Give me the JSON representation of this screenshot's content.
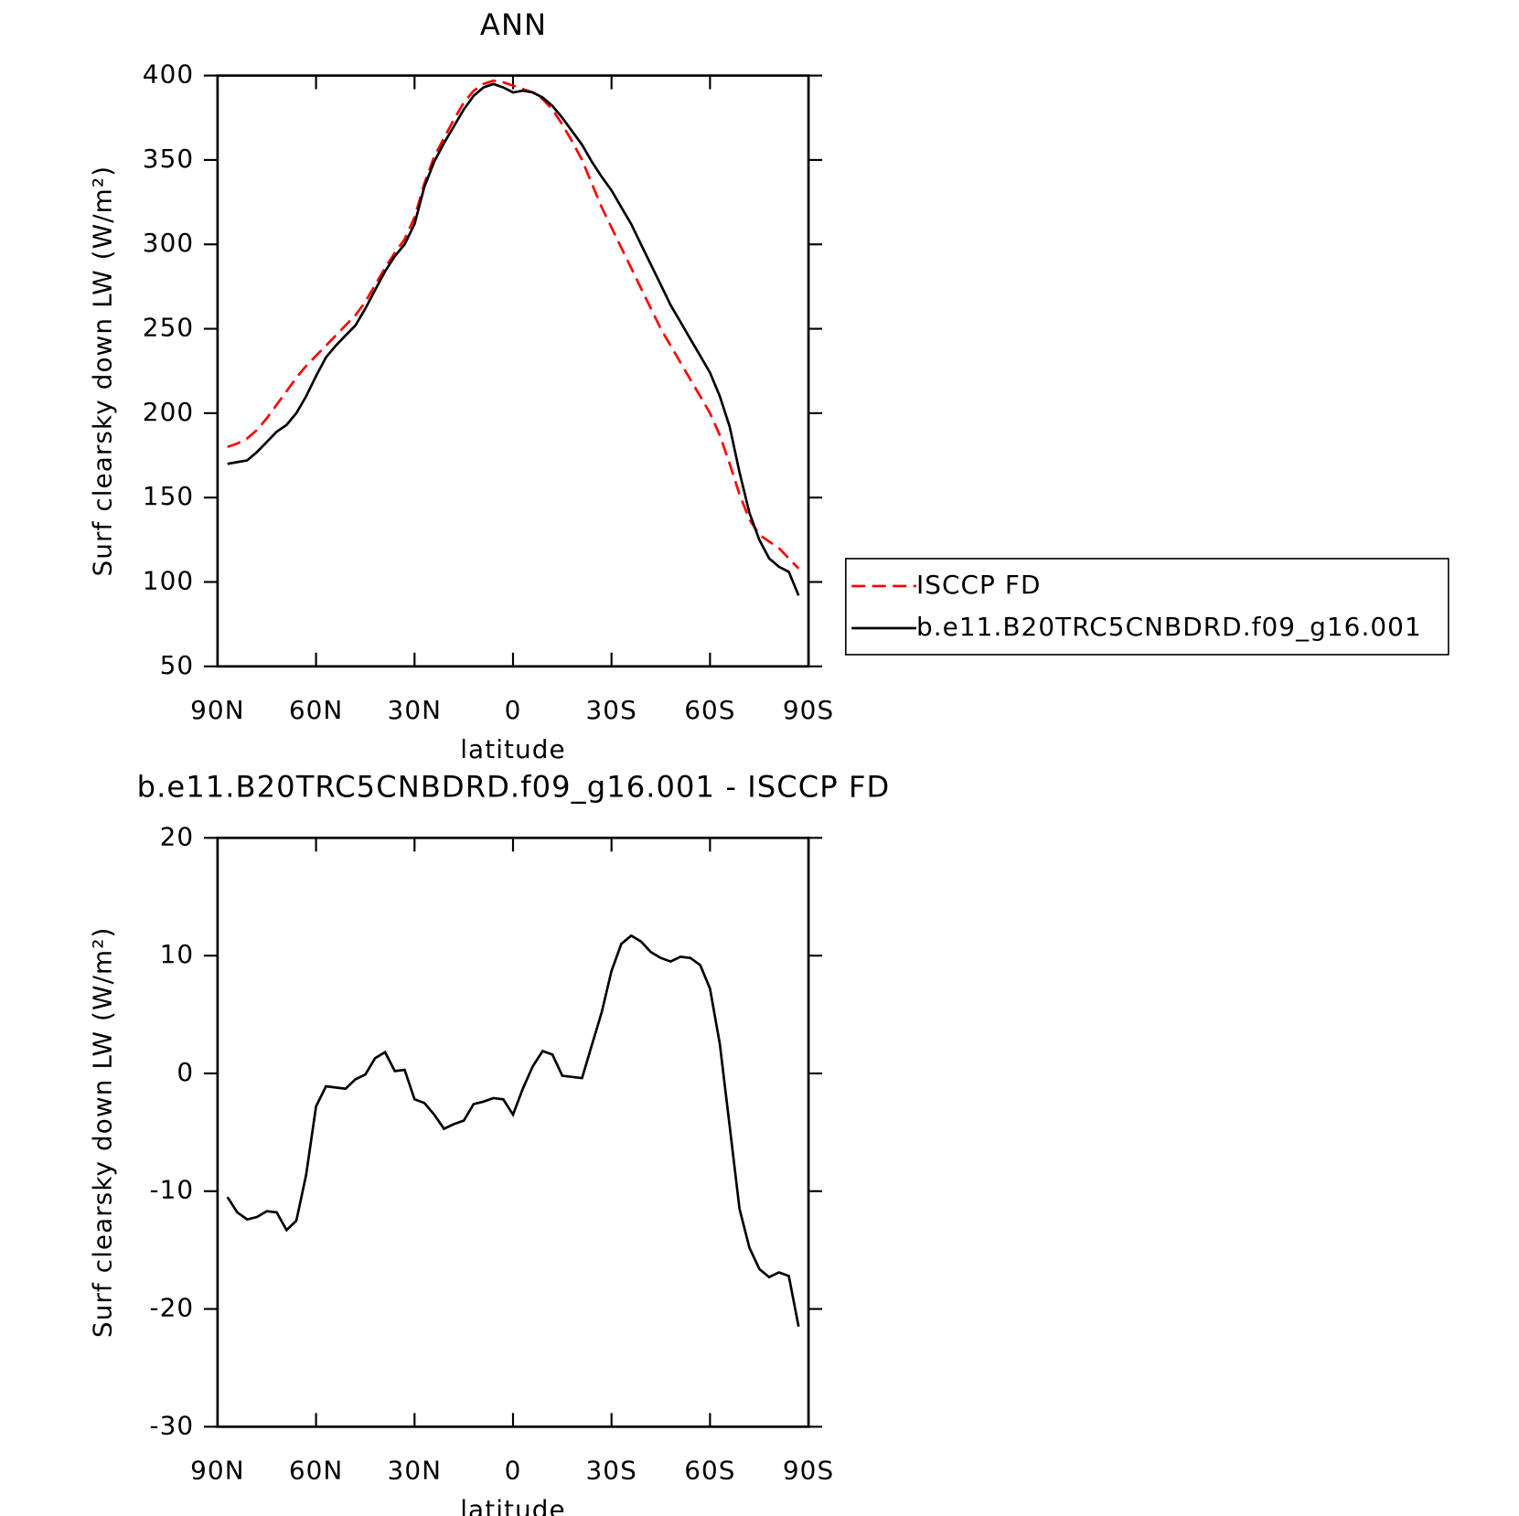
{
  "chart_data": [
    {
      "type": "line",
      "title": "ANN",
      "xlabel": "latitude",
      "ylabel": "Surf clearsky down LW (W/m²)",
      "x": [
        87,
        84,
        81,
        78,
        75,
        72,
        69,
        66,
        63,
        60,
        57,
        54,
        51,
        48,
        45,
        42,
        39,
        36,
        33,
        30,
        27,
        24,
        21,
        18,
        15,
        12,
        9,
        6,
        3,
        0,
        -3,
        -6,
        -9,
        -12,
        -15,
        -18,
        -21,
        -24,
        -27,
        -30,
        -33,
        -36,
        -39,
        -42,
        -45,
        -48,
        -51,
        -54,
        -57,
        -60,
        -63,
        -66,
        -69,
        -72,
        -75,
        -78,
        -81,
        -84,
        -87
      ],
      "series": [
        {
          "name": "ISCCP FD",
          "color": "#ff0000",
          "dashed": true,
          "values": [
            180,
            182,
            185,
            190,
            197,
            205,
            213,
            221,
            228,
            234,
            240,
            246,
            252,
            258,
            266,
            276,
            286,
            295,
            303,
            316,
            336,
            352,
            363,
            374,
            384,
            391,
            395,
            397,
            396,
            394,
            392,
            390,
            386,
            380,
            371,
            361,
            350,
            336,
            322,
            310,
            298,
            286,
            274,
            262,
            250,
            240,
            230,
            220,
            210,
            200,
            187,
            170,
            152,
            137,
            128,
            124,
            120,
            114,
            108
          ]
        },
        {
          "name": "b.e11.B20TRC5CNBDRD.f09_g16.001",
          "color": "#000000",
          "dashed": false,
          "values": [
            170,
            171,
            172,
            177,
            183,
            189,
            193,
            200,
            210,
            222,
            233,
            240,
            246,
            252,
            262,
            273,
            284,
            293,
            300,
            312,
            334,
            349,
            360,
            370,
            380,
            388,
            393,
            395,
            393,
            390,
            391,
            390,
            387,
            382,
            375,
            367,
            359,
            349,
            340,
            332,
            322,
            312,
            300,
            288,
            276,
            264,
            254,
            244,
            234,
            224,
            210,
            192,
            165,
            141,
            125,
            114,
            109,
            106,
            92
          ]
        }
      ],
      "xlim": [
        90,
        -90
      ],
      "xticks": [
        {
          "value": 90,
          "label": "90N"
        },
        {
          "value": 60,
          "label": "60N"
        },
        {
          "value": 30,
          "label": "30N"
        },
        0,
        {
          "value": -30,
          "label": "30S"
        },
        {
          "value": -60,
          "label": "60S"
        },
        {
          "value": -90,
          "label": "90S"
        }
      ],
      "ylim": [
        50,
        400
      ],
      "yticks": [
        50,
        100,
        150,
        200,
        250,
        300,
        350,
        400
      ],
      "legend": "right"
    },
    {
      "type": "line",
      "title": "b.e11.B20TRC5CNBDRD.f09_g16.001 - ISCCP FD",
      "xlabel": "latitude",
      "ylabel": "Surf clearsky down LW (W/m²)",
      "x": [
        87,
        84,
        81,
        78,
        75,
        72,
        69,
        66,
        63,
        60,
        57,
        54,
        51,
        48,
        45,
        42,
        39,
        36,
        33,
        30,
        27,
        24,
        21,
        18,
        15,
        12,
        9,
        6,
        3,
        0,
        -3,
        -6,
        -9,
        -12,
        -15,
        -18,
        -21,
        -24,
        -27,
        -30,
        -33,
        -36,
        -39,
        -42,
        -45,
        -48,
        -51,
        -54,
        -57,
        -60,
        -63,
        -66,
        -69,
        -72,
        -75,
        -78,
        -81,
        -84,
        -87
      ],
      "series": [
        {
          "color": "#000000",
          "dashed": false,
          "values": [
            -10.5,
            -11.8,
            -12.4,
            -12.2,
            -11.7,
            -11.8,
            -13.3,
            -12.5,
            -8.6,
            -2.8,
            -1.1,
            -1.2,
            -1.3,
            -0.5,
            -0.1,
            1.3,
            1.8,
            0.2,
            0.3,
            -2.2,
            -2.5,
            -3.5,
            -4.7,
            -4.3,
            -4.0,
            -2.6,
            -2.4,
            -2.1,
            -2.2,
            -3.5,
            -1.3,
            0.6,
            1.9,
            1.6,
            -0.2,
            -0.3,
            -0.4,
            2.4,
            5.2,
            8.7,
            11.0,
            11.7,
            11.2,
            10.3,
            9.8,
            9.5,
            9.9,
            9.8,
            9.2,
            7.2,
            2.5,
            -4.5,
            -11.5,
            -14.8,
            -16.6,
            -17.3,
            -16.9,
            -17.2,
            -21.5
          ]
        }
      ],
      "xlim": [
        90,
        -90
      ],
      "xticks": [
        {
          "value": 90,
          "label": "90N"
        },
        {
          "value": 60,
          "label": "60N"
        },
        {
          "value": 30,
          "label": "30N"
        },
        0,
        {
          "value": -30,
          "label": "30S"
        },
        {
          "value": -60,
          "label": "60S"
        },
        {
          "value": -90,
          "label": "90S"
        }
      ],
      "ylim": [
        -30,
        20
      ],
      "yticks": [
        -30,
        -20,
        -10,
        0,
        10,
        20
      ]
    }
  ]
}
